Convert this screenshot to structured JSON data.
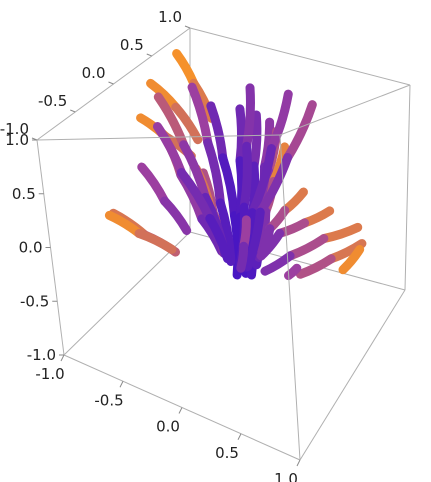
{
  "chart_data": {
    "type": "line",
    "subtype": "3d-stream-plot",
    "title": "",
    "xlabel": "",
    "ylabel": "",
    "zlabel": "",
    "xlim": [
      -1.0,
      1.0
    ],
    "ylim": [
      -1.0,
      1.0
    ],
    "zlim": [
      -1.0,
      1.0
    ],
    "ticks": {
      "x": [
        "-1.0",
        "-0.5",
        "0.0",
        "0.5",
        "1.0"
      ],
      "y": [
        "-1.0",
        "-0.5",
        "0.0",
        "0.5",
        "1.0"
      ],
      "z": [
        "-1.0",
        "-0.5",
        "0.0",
        "0.5",
        "1.0"
      ]
    },
    "box": true,
    "grid": false,
    "legend": "none",
    "color_scale": {
      "low": "#3a0fc8",
      "mid": "#9c3fa0",
      "high": "#ff9a1e"
    },
    "series": [
      {
        "points": [
          [
            -0.7,
            -0.15,
            0.35
          ],
          [
            -0.55,
            -0.1,
            0.05
          ],
          [
            -0.4,
            -0.05,
            -0.2
          ]
        ],
        "magnitude": [
          0.55,
          0.45,
          0.35
        ]
      },
      {
        "points": [
          [
            -0.35,
            -0.35,
            0.75
          ],
          [
            -0.3,
            -0.25,
            0.4
          ],
          [
            -0.2,
            -0.15,
            0.0
          ],
          [
            -0.1,
            -0.05,
            -0.3
          ]
        ],
        "magnitude": [
          0.7,
          0.55,
          0.35,
          0.2
        ]
      },
      {
        "points": [
          [
            -0.85,
            -0.35,
            0.0
          ],
          [
            -0.65,
            -0.25,
            -0.2
          ],
          [
            -0.45,
            -0.15,
            -0.35
          ]
        ],
        "magnitude": [
          0.85,
          0.75,
          0.6
        ]
      },
      {
        "points": [
          [
            -0.95,
            -0.25,
            -0.1
          ],
          [
            -0.7,
            -0.25,
            -0.2
          ],
          [
            -0.45,
            -0.2,
            -0.3
          ]
        ],
        "magnitude": [
          1.0,
          0.85,
          0.7
        ]
      },
      {
        "points": [
          [
            -0.95,
            0.25,
            0.55
          ],
          [
            -0.7,
            0.2,
            0.45
          ],
          [
            -0.45,
            0.15,
            0.35
          ]
        ],
        "magnitude": [
          1.0,
          0.85,
          0.7
        ]
      },
      {
        "points": [
          [
            -0.95,
            0.75,
            0.9
          ],
          [
            -0.7,
            0.6,
            0.75
          ],
          [
            -0.45,
            0.45,
            0.55
          ]
        ],
        "magnitude": [
          1.0,
          0.9,
          0.75
        ]
      },
      {
        "points": [
          [
            -0.95,
            0.4,
            0.8
          ],
          [
            -0.7,
            0.35,
            0.65
          ],
          [
            -0.45,
            0.25,
            0.45
          ]
        ],
        "magnitude": [
          1.0,
          0.85,
          0.7
        ]
      },
      {
        "points": [
          [
            -0.1,
            -0.1,
            0.95
          ],
          [
            -0.05,
            -0.05,
            0.5
          ],
          [
            0.0,
            0.0,
            0.0
          ],
          [
            0.0,
            0.0,
            -0.5
          ]
        ],
        "magnitude": [
          0.35,
          0.2,
          0.05,
          0.1
        ]
      },
      {
        "points": [
          [
            0.15,
            -0.1,
            0.95
          ],
          [
            0.1,
            -0.05,
            0.5
          ],
          [
            0.05,
            0.0,
            0.0
          ],
          [
            0.05,
            0.05,
            -0.5
          ]
        ],
        "magnitude": [
          0.35,
          0.2,
          0.05,
          0.1
        ]
      },
      {
        "points": [
          [
            0.35,
            -0.2,
            0.95
          ],
          [
            0.25,
            -0.1,
            0.5
          ],
          [
            0.15,
            0.0,
            0.0
          ],
          [
            0.1,
            0.05,
            -0.5
          ]
        ],
        "magnitude": [
          0.4,
          0.25,
          0.1,
          0.1
        ]
      },
      {
        "points": [
          [
            0.55,
            -0.35,
            0.95
          ],
          [
            0.4,
            -0.2,
            0.55
          ],
          [
            0.25,
            -0.05,
            0.1
          ],
          [
            0.15,
            0.05,
            -0.4
          ]
        ],
        "magnitude": [
          0.5,
          0.35,
          0.2,
          0.15
        ]
      },
      {
        "points": [
          [
            0.75,
            -0.6,
            0.95
          ],
          [
            0.55,
            -0.4,
            0.6
          ],
          [
            0.35,
            -0.2,
            0.2
          ],
          [
            0.2,
            0.0,
            -0.3
          ]
        ],
        "magnitude": [
          0.7,
          0.5,
          0.3,
          0.2
        ]
      },
      {
        "points": [
          [
            0.95,
            -0.85,
            0.9
          ],
          [
            0.7,
            -0.6,
            0.6
          ],
          [
            0.45,
            -0.3,
            0.25
          ],
          [
            0.25,
            -0.05,
            -0.2
          ]
        ],
        "magnitude": [
          1.0,
          0.75,
          0.45,
          0.25
        ]
      },
      {
        "points": [
          [
            0.95,
            -0.6,
            0.55
          ],
          [
            0.7,
            -0.45,
            0.35
          ],
          [
            0.45,
            -0.25,
            0.1
          ],
          [
            0.25,
            -0.05,
            -0.25
          ]
        ],
        "magnitude": [
          0.95,
          0.7,
          0.45,
          0.25
        ]
      },
      {
        "points": [
          [
            0.95,
            -0.2,
            0.3
          ],
          [
            0.7,
            -0.15,
            0.15
          ],
          [
            0.45,
            -0.1,
            0.0
          ],
          [
            0.25,
            -0.05,
            -0.25
          ]
        ],
        "magnitude": [
          0.95,
          0.7,
          0.45,
          0.25
        ]
      },
      {
        "points": [
          [
            0.95,
            0.25,
            0.0
          ],
          [
            0.7,
            0.15,
            -0.1
          ],
          [
            0.45,
            0.05,
            -0.25
          ],
          [
            0.25,
            0.0,
            -0.4
          ]
        ],
        "magnitude": [
          0.95,
          0.7,
          0.45,
          0.25
        ]
      },
      {
        "points": [
          [
            0.8,
            0.6,
            -0.35
          ],
          [
            0.6,
            0.45,
            -0.45
          ],
          [
            0.4,
            0.3,
            -0.55
          ]
        ],
        "magnitude": [
          0.9,
          0.7,
          0.5
        ]
      },
      {
        "points": [
          [
            0.65,
            0.85,
            -0.6
          ],
          [
            0.55,
            0.75,
            -0.75
          ]
        ],
        "magnitude": [
          1.0,
          0.85
        ]
      },
      {
        "points": [
          [
            0.1,
            0.8,
            -0.9
          ],
          [
            0.05,
            0.75,
            -0.95
          ]
        ],
        "magnitude": [
          0.55,
          0.45
        ]
      },
      {
        "points": [
          [
            -0.6,
            0.55,
            -0.05
          ],
          [
            -0.4,
            0.35,
            -0.25
          ],
          [
            -0.2,
            0.15,
            -0.45
          ]
        ],
        "magnitude": [
          0.7,
          0.5,
          0.3
        ]
      },
      {
        "points": [
          [
            -0.85,
            0.85,
            -0.25
          ],
          [
            -0.6,
            0.65,
            -0.45
          ],
          [
            -0.35,
            0.45,
            -0.6
          ]
        ],
        "magnitude": [
          0.9,
          0.7,
          0.5
        ]
      },
      {
        "points": [
          [
            -0.1,
            0.45,
            0.9
          ],
          [
            -0.05,
            0.3,
            0.45
          ],
          [
            0.0,
            0.15,
            0.0
          ],
          [
            0.0,
            0.05,
            -0.45
          ]
        ],
        "magnitude": [
          0.45,
          0.3,
          0.15,
          0.1
        ]
      },
      {
        "points": [
          [
            0.3,
            0.35,
            0.95
          ],
          [
            0.2,
            0.25,
            0.5
          ],
          [
            0.1,
            0.1,
            0.0
          ],
          [
            0.05,
            0.05,
            -0.45
          ]
        ],
        "magnitude": [
          0.55,
          0.35,
          0.15,
          0.1
        ]
      },
      {
        "points": [
          [
            -0.45,
            0.2,
            0.95
          ],
          [
            -0.3,
            0.15,
            0.5
          ],
          [
            -0.15,
            0.05,
            0.05
          ],
          [
            -0.05,
            0.0,
            -0.4
          ]
        ],
        "magnitude": [
          0.6,
          0.4,
          0.2,
          0.1
        ]
      },
      {
        "points": [
          [
            -0.65,
            0.05,
            0.9
          ],
          [
            -0.45,
            0.05,
            0.5
          ],
          [
            -0.25,
            0.0,
            0.1
          ],
          [
            -0.1,
            0.0,
            -0.35
          ]
        ],
        "magnitude": [
          0.75,
          0.55,
          0.3,
          0.15
        ]
      },
      {
        "points": [
          [
            0.6,
            0.2,
            0.95
          ],
          [
            0.4,
            0.15,
            0.5
          ],
          [
            0.2,
            0.05,
            0.05
          ],
          [
            0.1,
            0.0,
            -0.4
          ]
        ],
        "magnitude": [
          0.65,
          0.45,
          0.25,
          0.1
        ]
      },
      {
        "points": [
          [
            0.45,
            -0.6,
            0.3
          ],
          [
            0.3,
            -0.4,
            0.0
          ],
          [
            0.15,
            -0.2,
            -0.3
          ]
        ],
        "magnitude": [
          0.6,
          0.4,
          0.2
        ]
      },
      {
        "points": [
          [
            -0.25,
            -0.6,
            0.95
          ],
          [
            -0.2,
            -0.4,
            0.5
          ],
          [
            -0.1,
            -0.2,
            0.05
          ],
          [
            -0.05,
            -0.05,
            -0.35
          ]
        ],
        "magnitude": [
          0.55,
          0.4,
          0.2,
          0.1
        ]
      }
    ]
  }
}
